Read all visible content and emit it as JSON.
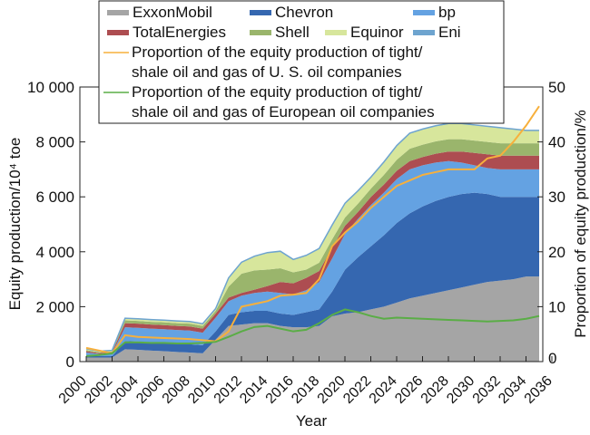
{
  "chart_data": {
    "type": "area",
    "stacked": true,
    "xlabel": "Year",
    "ylabel": "Equity production/10⁴ toe",
    "y2label": "Proportion of equity production/%",
    "ylim": [
      0,
      10000
    ],
    "y2lim": [
      0,
      50
    ],
    "yticks": [
      "0",
      "2 000",
      "4 000",
      "6 000",
      "8 000",
      "10 000"
    ],
    "y2ticks": [
      "0",
      "10",
      "20",
      "30",
      "40",
      "50"
    ],
    "xticks": [
      "2000",
      "2002",
      "2004",
      "2006",
      "2008",
      "2010",
      "2012",
      "2014",
      "2016",
      "2018",
      "2020",
      "2022",
      "2024",
      "2026",
      "2028",
      "2030",
      "2032",
      "2034",
      "2036"
    ],
    "x": [
      2000,
      2001,
      2002,
      2003,
      2004,
      2005,
      2006,
      2007,
      2008,
      2009,
      2010,
      2011,
      2012,
      2013,
      2014,
      2015,
      2016,
      2017,
      2018,
      2019,
      2020,
      2021,
      2022,
      2023,
      2024,
      2025,
      2026,
      2027,
      2028,
      2029,
      2030,
      2031,
      2032,
      2033,
      2034,
      2035
    ],
    "legend_position": "top",
    "series": [
      {
        "name": "ExxonMobil",
        "color": "#a5a5a5",
        "values": [
          150,
          150,
          150,
          450,
          430,
          400,
          380,
          350,
          330,
          300,
          800,
          1300,
          1350,
          1400,
          1400,
          1300,
          1250,
          1250,
          1300,
          1650,
          1750,
          1800,
          1900,
          2000,
          2150,
          2300,
          2400,
          2500,
          2600,
          2700,
          2800,
          2900,
          2950,
          3000,
          3100,
          3100
        ]
      },
      {
        "name": "Chevron",
        "color": "#3567b0",
        "values": [
          80,
          50,
          50,
          300,
          300,
          300,
          300,
          300,
          300,
          300,
          300,
          400,
          450,
          450,
          450,
          450,
          450,
          550,
          600,
          900,
          1600,
          2000,
          2300,
          2600,
          2900,
          3100,
          3250,
          3350,
          3400,
          3400,
          3350,
          3200,
          3050,
          3000,
          2900,
          2900
        ]
      },
      {
        "name": "bp",
        "color": "#64a2e2",
        "values": [
          100,
          80,
          100,
          500,
          500,
          500,
          500,
          500,
          500,
          450,
          500,
          500,
          600,
          650,
          700,
          750,
          750,
          800,
          1000,
          1200,
          1300,
          1400,
          1500,
          1550,
          1600,
          1600,
          1500,
          1400,
          1300,
          1150,
          1000,
          950,
          1000,
          1000,
          1000,
          1000
        ]
      },
      {
        "name": "TotalEnergies",
        "color": "#ad4d51",
        "values": [
          50,
          30,
          40,
          150,
          150,
          150,
          150,
          150,
          150,
          150,
          150,
          130,
          100,
          120,
          200,
          400,
          400,
          450,
          400,
          400,
          300,
          250,
          300,
          300,
          300,
          300,
          300,
          320,
          350,
          400,
          450,
          500,
          500,
          500,
          500,
          500
        ]
      },
      {
        "name": "Shell",
        "color": "#9ab56c",
        "values": [
          40,
          30,
          30,
          100,
          100,
          100,
          100,
          100,
          100,
          100,
          100,
          400,
          700,
          700,
          600,
          500,
          400,
          300,
          300,
          300,
          300,
          300,
          300,
          350,
          400,
          450,
          450,
          450,
          450,
          450,
          450,
          450,
          450,
          450,
          450,
          450
        ]
      },
      {
        "name": "Equinor",
        "color": "#d7e69c",
        "values": [
          30,
          20,
          20,
          60,
          60,
          60,
          60,
          60,
          60,
          60,
          60,
          300,
          400,
          500,
          600,
          600,
          450,
          500,
          500,
          500,
          500,
          450,
          400,
          450,
          500,
          550,
          550,
          550,
          550,
          550,
          550,
          550,
          550,
          500,
          450,
          450
        ]
      },
      {
        "name": "Eni",
        "color": "#6ea4cf",
        "values": [
          20,
          20,
          20,
          20,
          20,
          20,
          20,
          20,
          20,
          20,
          20,
          20,
          20,
          20,
          20,
          20,
          20,
          20,
          20,
          20,
          20,
          20,
          20,
          20,
          20,
          20,
          20,
          20,
          20,
          20,
          20,
          20,
          20,
          20,
          20,
          20
        ]
      }
    ],
    "lines": [
      {
        "name": "Proportion of the equity production of tight/ shale oil and gas of U. S. oil companies",
        "legend_lines": [
          "Proportion of the equity production of tight/",
          "shale oil and gas of U. S. oil companies"
        ],
        "color": "#f7b03c",
        "axis": "right",
        "values": [
          2.5,
          2,
          1.5,
          4.8,
          4.5,
          4.4,
          4.3,
          4.2,
          4.1,
          3.9,
          3.7,
          5.5,
          10,
          10.5,
          11,
          12,
          12.2,
          12.5,
          15,
          21,
          23.5,
          25.5,
          28,
          30,
          32,
          33,
          34,
          34.5,
          35,
          35,
          35,
          37,
          37.5,
          40,
          43,
          46.5
        ]
      },
      {
        "name": "Proportion of the equity production of tight/ shale oil and gas of European oil companies",
        "legend_lines": [
          "Proportion of the equity production of tight/",
          "shale oil and gas of European oil companies"
        ],
        "color": "#5aad46",
        "axis": "right",
        "values": [
          1,
          1.2,
          1.5,
          3.5,
          3.5,
          3.4,
          3.4,
          3.3,
          3.3,
          3.4,
          3.6,
          4.5,
          5.5,
          6.3,
          6.5,
          6,
          5.5,
          5.8,
          7,
          8.5,
          9.5,
          9,
          8.3,
          7.8,
          8,
          7.9,
          7.8,
          7.7,
          7.6,
          7.5,
          7.4,
          7.3,
          7.4,
          7.5,
          7.8,
          8.3
        ]
      }
    ]
  }
}
